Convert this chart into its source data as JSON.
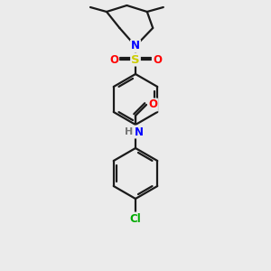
{
  "bg_color": "#ebebeb",
  "bond_color": "#1a1a1a",
  "bond_width": 1.6,
  "atom_colors": {
    "N": "#0000ff",
    "O": "#ff0000",
    "S": "#cccc00",
    "Cl": "#00aa00",
    "H": "#777777",
    "C": "#1a1a1a"
  },
  "font_size": 8.5
}
